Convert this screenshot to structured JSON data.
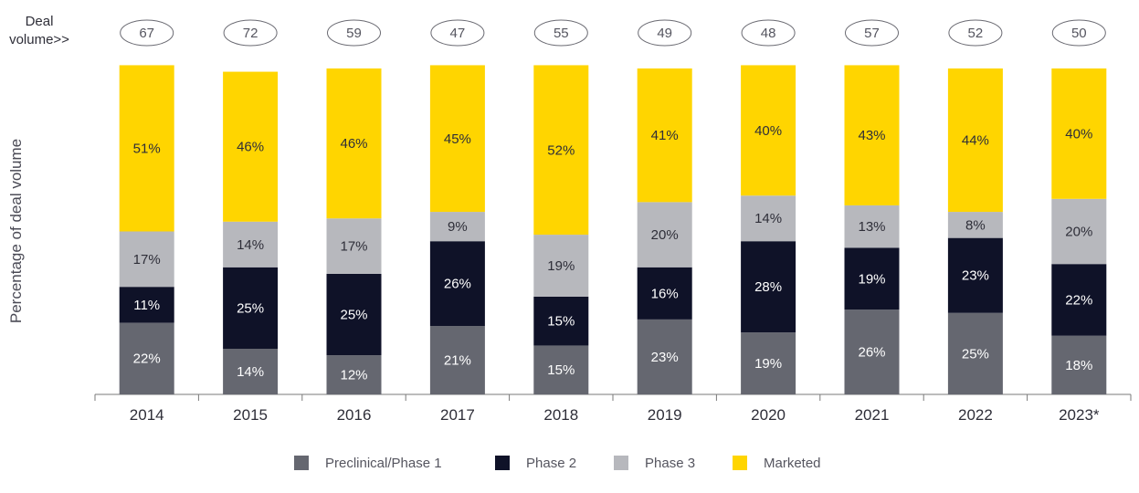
{
  "deal_volume_label": [
    "Deal",
    "volume>>"
  ],
  "colors": {
    "preclinical": "#656770",
    "phase2": "#0f1228",
    "phase3": "#b7b8bd",
    "marketed": "#ffd500",
    "text_light": "#ffffff",
    "text_dark": "#2e2e38",
    "axis": "#7a7a7a"
  },
  "chart_data": {
    "type": "bar",
    "stacked": true,
    "percent_stacked": true,
    "title": "",
    "xlabel": "",
    "ylabel": "Percentage of deal volume",
    "categories": [
      "2014",
      "2015",
      "2016",
      "2017",
      "2018",
      "2019",
      "2020",
      "2021",
      "2022",
      "2023*"
    ],
    "deal_volume": [
      67,
      72,
      59,
      47,
      55,
      49,
      48,
      57,
      52,
      50
    ],
    "series": [
      {
        "name": "Preclinical/Phase 1",
        "color": "#656770",
        "values": [
          22,
          14,
          12,
          21,
          15,
          23,
          19,
          26,
          25,
          18
        ]
      },
      {
        "name": "Phase 2",
        "color": "#0f1228",
        "values": [
          11,
          25,
          25,
          26,
          15,
          16,
          28,
          19,
          23,
          22
        ]
      },
      {
        "name": "Phase 3",
        "color": "#b7b8bd",
        "values": [
          17,
          14,
          17,
          9,
          19,
          20,
          14,
          13,
          8,
          20
        ]
      },
      {
        "name": "Marketed",
        "color": "#ffd500",
        "values": [
          51,
          46,
          46,
          45,
          52,
          41,
          40,
          43,
          44,
          40
        ]
      }
    ],
    "value_suffix": "%",
    "legend_position": "bottom",
    "grid": false
  }
}
